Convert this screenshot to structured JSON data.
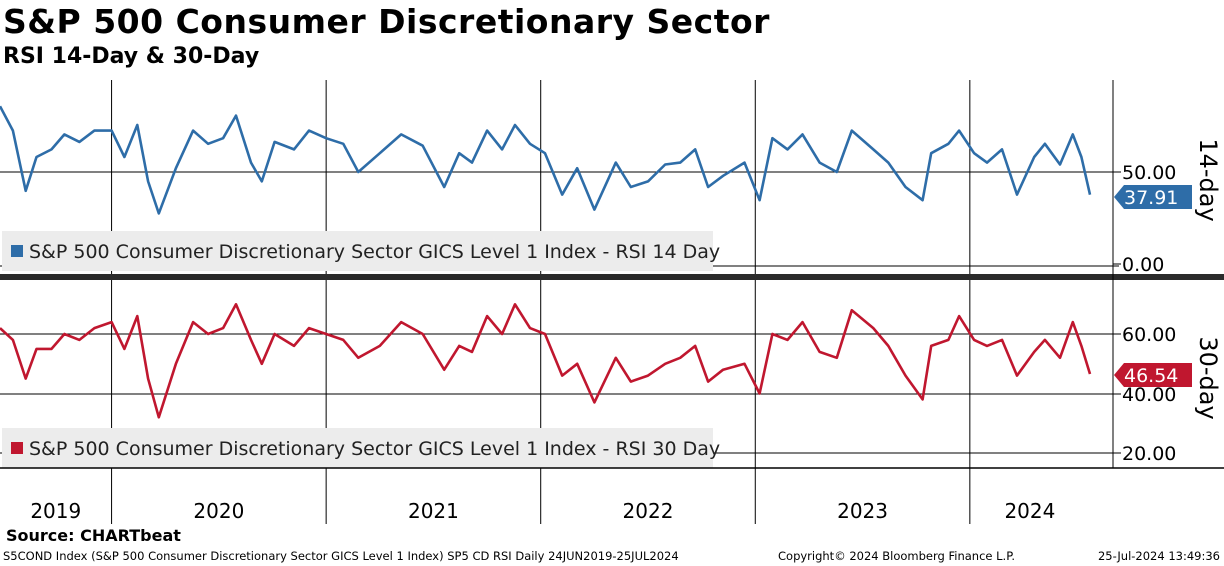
{
  "title": "S&P 500 Consumer Discretionary Sector",
  "subtitle": "RSI 14-Day & 30-Day",
  "source": "Source: CHARTbeat",
  "footer": {
    "left": "S5COND Index (S&P 500 Consumer Discretionary Sector GICS Level 1 Index) SP5 CD RSI  Daily 24JUN2019-25JUL2024",
    "middle": "Copyright© 2024 Bloomberg Finance L.P.",
    "right": "25-Jul-2024 13:49:36"
  },
  "colors": {
    "rsi14": "#2e6da8",
    "rsi30": "#c0172f",
    "legend_bg": "#ececec"
  },
  "chart_data": [
    {
      "type": "line",
      "panel": "top",
      "side_label": "14-day",
      "legend": "S&P 500 Consumer Discretionary Sector GICS Level 1 Index - RSI 14 Day",
      "ylim": [
        0,
        100
      ],
      "yticks": [
        "50.00",
        "0.00"
      ],
      "last_value": "37.91",
      "series": [
        {
          "name": "S&P 500 Consumer Discretionary Sector GICS Level 1 Index - RSI 14 Day",
          "x": [
            2019.48,
            2019.54,
            2019.6,
            2019.65,
            2019.72,
            2019.78,
            2019.85,
            2019.92,
            2020.0,
            2020.06,
            2020.12,
            2020.17,
            2020.22,
            2020.3,
            2020.38,
            2020.45,
            2020.52,
            2020.58,
            2020.65,
            2020.7,
            2020.76,
            2020.85,
            2020.92,
            2021.0,
            2021.08,
            2021.15,
            2021.25,
            2021.35,
            2021.45,
            2021.55,
            2021.62,
            2021.68,
            2021.75,
            2021.82,
            2021.88,
            2021.95,
            2022.02,
            2022.1,
            2022.17,
            2022.25,
            2022.35,
            2022.42,
            2022.5,
            2022.58,
            2022.65,
            2022.72,
            2022.78,
            2022.85,
            2022.95,
            2023.02,
            2023.08,
            2023.15,
            2023.22,
            2023.3,
            2023.38,
            2023.45,
            2023.55,
            2023.62,
            2023.7,
            2023.78,
            2023.82,
            2023.9,
            2023.95,
            2024.02,
            2024.08,
            2024.15,
            2024.22,
            2024.3,
            2024.35,
            2024.42,
            2024.48,
            2024.52,
            2024.56
          ],
          "y": [
            85,
            72,
            40,
            58,
            62,
            70,
            66,
            72,
            72,
            58,
            75,
            45,
            28,
            52,
            72,
            65,
            68,
            80,
            55,
            45,
            66,
            62,
            72,
            68,
            65,
            50,
            60,
            70,
            64,
            42,
            60,
            55,
            72,
            62,
            75,
            65,
            60,
            38,
            52,
            30,
            55,
            42,
            45,
            54,
            55,
            62,
            42,
            48,
            55,
            35,
            68,
            62,
            70,
            55,
            50,
            72,
            62,
            55,
            42,
            35,
            60,
            65,
            72,
            60,
            55,
            62,
            38,
            58,
            65,
            54,
            70,
            58,
            37.91
          ]
        }
      ]
    },
    {
      "type": "line",
      "panel": "bottom",
      "side_label": "30-day",
      "legend": "S&P 500 Consumer Discretionary Sector GICS Level 1 Index - RSI 30 Day",
      "ylim": [
        16,
        79
      ],
      "yticks": [
        "60.00",
        "40.00",
        "20.00"
      ],
      "last_value": "46.54",
      "series": [
        {
          "name": "S&P 500 Consumer Discretionary Sector GICS Level 1 Index - RSI 30 Day",
          "x": [
            2019.48,
            2019.54,
            2019.6,
            2019.65,
            2019.72,
            2019.78,
            2019.85,
            2019.92,
            2020.0,
            2020.06,
            2020.12,
            2020.17,
            2020.22,
            2020.3,
            2020.38,
            2020.45,
            2020.52,
            2020.58,
            2020.65,
            2020.7,
            2020.76,
            2020.85,
            2020.92,
            2021.0,
            2021.08,
            2021.15,
            2021.25,
            2021.35,
            2021.45,
            2021.55,
            2021.62,
            2021.68,
            2021.75,
            2021.82,
            2021.88,
            2021.95,
            2022.02,
            2022.1,
            2022.17,
            2022.25,
            2022.35,
            2022.42,
            2022.5,
            2022.58,
            2022.65,
            2022.72,
            2022.78,
            2022.85,
            2022.95,
            2023.02,
            2023.08,
            2023.15,
            2023.22,
            2023.3,
            2023.38,
            2023.45,
            2023.55,
            2023.62,
            2023.7,
            2023.78,
            2023.82,
            2023.9,
            2023.95,
            2024.02,
            2024.08,
            2024.15,
            2024.22,
            2024.3,
            2024.35,
            2024.42,
            2024.48,
            2024.52,
            2024.56
          ],
          "y": [
            62,
            58,
            45,
            55,
            55,
            60,
            58,
            62,
            64,
            55,
            66,
            45,
            32,
            50,
            64,
            60,
            62,
            70,
            58,
            50,
            60,
            56,
            62,
            60,
            58,
            52,
            56,
            64,
            60,
            48,
            56,
            54,
            66,
            60,
            70,
            62,
            60,
            46,
            50,
            37,
            52,
            44,
            46,
            50,
            52,
            56,
            44,
            48,
            50,
            40,
            60,
            58,
            64,
            54,
            52,
            68,
            62,
            56,
            46,
            38,
            56,
            58,
            66,
            58,
            56,
            58,
            46,
            54,
            58,
            52,
            64,
            56,
            46.54
          ]
        }
      ]
    }
  ],
  "x_axis": {
    "years": [
      "2019",
      "2020",
      "2021",
      "2022",
      "2023",
      "2024"
    ],
    "year_starts": [
      2020,
      2021,
      2022,
      2023,
      2024
    ],
    "x_range": [
      2019.48,
      2024.56
    ],
    "label_positions": [
      2019.74,
      2020.5,
      2021.5,
      2022.5,
      2023.5,
      2024.28
    ]
  }
}
